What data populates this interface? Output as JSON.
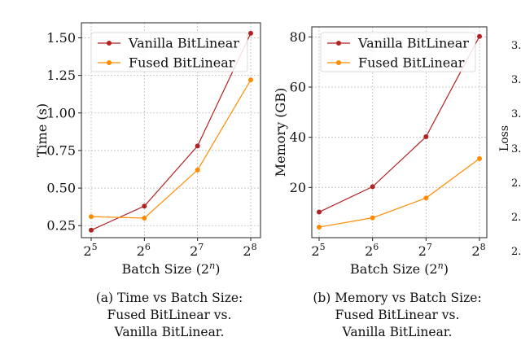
{
  "chart_data": [
    {
      "type": "line",
      "title": "",
      "xlabel": "Batch Size (2^n)",
      "ylabel": "Time (s)",
      "x": [
        5,
        6,
        7,
        8
      ],
      "xticks": [
        {
          "base": "2",
          "exp": "5"
        },
        {
          "base": "2",
          "exp": "6"
        },
        {
          "base": "2",
          "exp": "7"
        },
        {
          "base": "2",
          "exp": "8"
        }
      ],
      "yticks": [
        "0.25",
        "0.50",
        "0.75",
        "1.00",
        "1.25",
        "1.50"
      ],
      "ylim": [
        0.17,
        1.6
      ],
      "series": [
        {
          "name": "Vanilla BitLinear",
          "color": "#b22222",
          "values": [
            0.22,
            0.38,
            0.78,
            1.53
          ]
        },
        {
          "name": "Fused BitLinear",
          "color": "#ff8c00",
          "values": [
            0.31,
            0.3,
            0.62,
            1.22
          ]
        }
      ],
      "grid": true,
      "legend": "top-left"
    },
    {
      "type": "line",
      "title": "",
      "xlabel": "Batch Size (2^n)",
      "ylabel": "Memory (GB)",
      "x": [
        5,
        6,
        7,
        8
      ],
      "xticks": [
        {
          "base": "2",
          "exp": "5"
        },
        {
          "base": "2",
          "exp": "6"
        },
        {
          "base": "2",
          "exp": "7"
        },
        {
          "base": "2",
          "exp": "8"
        }
      ],
      "yticks": [
        "20",
        "40",
        "60",
        "80"
      ],
      "ylim": [
        0,
        84
      ],
      "series": [
        {
          "name": "Vanilla BitLinear",
          "color": "#b22222",
          "values": [
            10.2,
            20.3,
            40.2,
            80.2
          ]
        },
        {
          "name": "Fused BitLinear",
          "color": "#ff8c00",
          "values": [
            4.2,
            7.9,
            15.8,
            31.5
          ]
        }
      ],
      "grid": true,
      "legend": "top-left"
    }
  ],
  "captions": [
    {
      "lines": [
        "(a) Time vs Batch Size:",
        "Fused BitLinear vs.",
        "Vanilla BitLinear."
      ]
    },
    {
      "lines": [
        "(b) Memory vs Batch Size:",
        "Fused BitLinear vs.",
        "Vanilla BitLinear."
      ]
    }
  ],
  "partial_third_panel": {
    "ylabel": "Loss",
    "yticks": [
      "3.",
      "3.",
      "3.",
      "3.",
      "2.",
      "2.",
      "2."
    ]
  }
}
